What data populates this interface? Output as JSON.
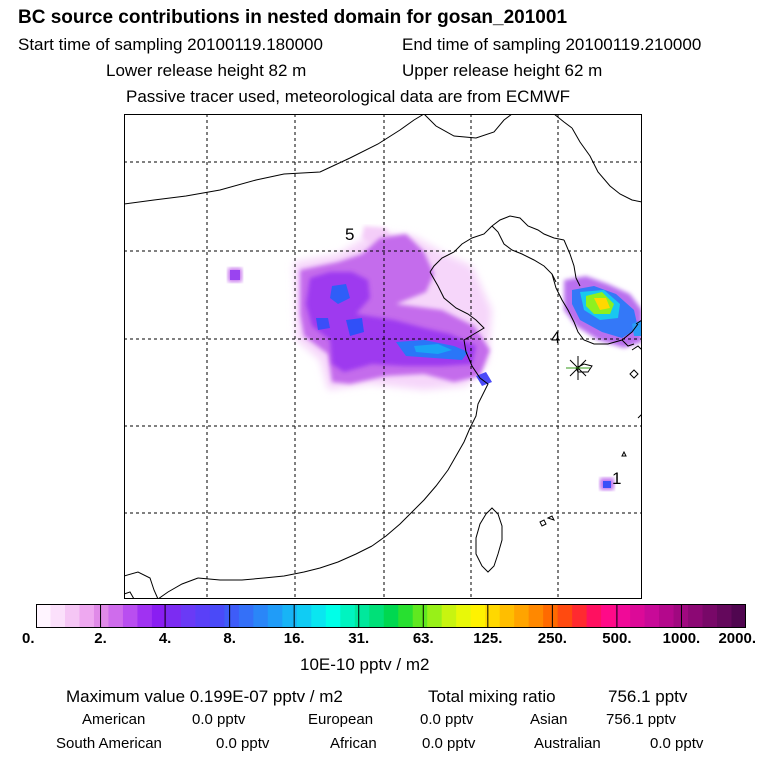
{
  "header": {
    "title": "BC  source contributions in nested domain for gosan_201001",
    "start_label": "Start time of sampling 20100119.180000",
    "end_label": "End time of sampling 20100119.210000",
    "lower_label": "Lower release height   82 m",
    "upper_label": "Upper release height   62 m",
    "note": "Passive tracer used, meteorological data are from ECMWF"
  },
  "map": {
    "markers": [
      {
        "label": "5"
      },
      {
        "label": "4"
      },
      {
        "label": "1"
      }
    ],
    "receptor_symbol": "asterisk-marker"
  },
  "colorbar": {
    "ticks": [
      "0.",
      "2.",
      "4.",
      "8.",
      "16.",
      "31.",
      "63.",
      "125.",
      "250.",
      "500.",
      "1000.",
      "2000."
    ],
    "colors": [
      "#fff5ff",
      "#fbe0fb",
      "#f5c6f5",
      "#eea8f0",
      "#e08ae8",
      "#cf6cec",
      "#b94ef0",
      "#a032f2",
      "#8a1ef2",
      "#7c2cf2",
      "#6a3af6",
      "#5a40f8",
      "#4a4af8",
      "#3e5cf8",
      "#3470f8",
      "#2a86f8",
      "#209cf8",
      "#18b4f6",
      "#10ccf4",
      "#0ae6f0",
      "#00ffe8",
      "#00f4c0",
      "#00e89c",
      "#00e078",
      "#00d850",
      "#28e030",
      "#60e820",
      "#98f018",
      "#c8f410",
      "#e8f808",
      "#fff200",
      "#ffd800",
      "#ffbe00",
      "#ffa400",
      "#ff8800",
      "#ff6a00",
      "#ff4a10",
      "#ff2a30",
      "#ff1060",
      "#ff0a88",
      "#f00a98",
      "#dc0a98",
      "#c80a98",
      "#b4088c",
      "#a00880",
      "#8c0874",
      "#780868",
      "#64085c",
      "#500650"
    ],
    "unit_label": "10E-10 pptv / m2"
  },
  "summary": {
    "max_label": "Maximum value  0.199E-07 pptv / m2",
    "total_label": "Total mixing ratio",
    "total_value": "756.1 pptv",
    "regions": [
      {
        "name": "American",
        "value": "0.0 pptv"
      },
      {
        "name": "European",
        "value": "0.0 pptv"
      },
      {
        "name": "Asian",
        "value": "756.1 pptv"
      },
      {
        "name": "South American",
        "value": "0.0 pptv"
      },
      {
        "name": "African",
        "value": "0.0 pptv"
      },
      {
        "name": "Australian",
        "value": "0.0 pptv"
      }
    ]
  }
}
